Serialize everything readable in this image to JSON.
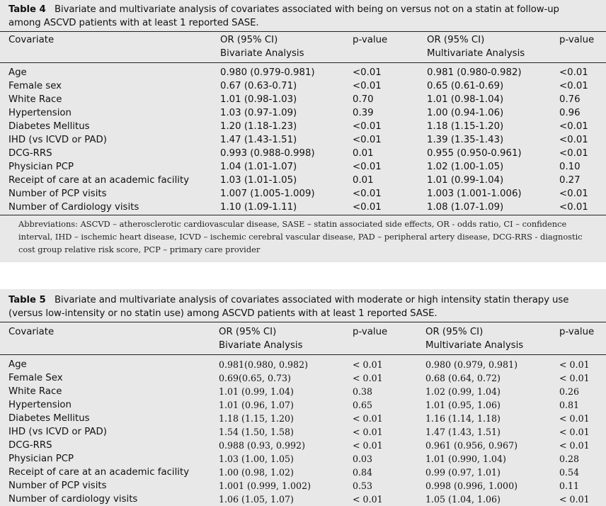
{
  "table4": {
    "label": "Table 4",
    "title": "Bivariate and multivariate analysis of covariates associated with being on versus not on a statin at follow-up among ASCVD patients with at least 1 reported SASE.",
    "headers": {
      "covariate": "Covariate",
      "or_biv_1": "OR (95% CI)",
      "or_biv_2": "Bivariate Analysis",
      "p_biv": "p-value",
      "or_mult_1": "OR (95% CI)",
      "or_mult_2": "Multivariate Analysis",
      "p_mult": "p-value"
    },
    "rows": [
      {
        "covariate": "Age",
        "or_biv": "0.980 (0.979-0.981)",
        "p_biv": "<0.01",
        "or_mult": "0.981 (0.980-0.982)",
        "p_mult": "<0.01"
      },
      {
        "covariate": "Female sex",
        "or_biv": "0.67 (0.63-0.71)",
        "p_biv": "<0.01",
        "or_mult": "0.65 (0.61-0.69)",
        "p_mult": "<0.01"
      },
      {
        "covariate": "White Race",
        "or_biv": "1.01 (0.98-1.03)",
        "p_biv": "0.70",
        "or_mult": "1.01 (0.98-1.04)",
        "p_mult": "0.76"
      },
      {
        "covariate": "Hypertension",
        "or_biv": "1.03 (0.97-1.09)",
        "p_biv": "0.39",
        "or_mult": "1.00 (0.94-1.06)",
        "p_mult": "0.96"
      },
      {
        "covariate": "Diabetes Mellitus",
        "or_biv": "1.20 (1.18-1.23)",
        "p_biv": "<0.01",
        "or_mult": "1.18 (1.15-1.20)",
        "p_mult": "<0.01"
      },
      {
        "covariate": "IHD (vs ICVD or PAD)",
        "or_biv": "1.47 (1.43-1.51)",
        "p_biv": "<0.01",
        "or_mult": "1.39 (1.35-1.43)",
        "p_mult": "<0.01"
      },
      {
        "covariate": "DCG-RRS",
        "or_biv": "0.993 (0.988-0.998)",
        "p_biv": "0.01",
        "or_mult": "0.955 (0.950-0.961)",
        "p_mult": "<0.01"
      },
      {
        "covariate": "Physician PCP",
        "or_biv": "1.04 (1.01-1.07)",
        "p_biv": "<0.01",
        "or_mult": "1.02 (1.00-1.05)",
        "p_mult": "0.10"
      },
      {
        "covariate": "Receipt of care at an academic facility",
        "or_biv": "1.03 (1.01-1.05)",
        "p_biv": "0.01",
        "or_mult": "1.01 (0.99-1.04)",
        "p_mult": "0.27"
      },
      {
        "covariate": "Number of PCP visits",
        "or_biv": "1.007 (1.005-1.009)",
        "p_biv": "<0.01",
        "or_mult": "1.003 (1.001-1.006)",
        "p_mult": "<0.01"
      },
      {
        "covariate": "Number of Cardiology visits",
        "or_biv": "1.10 (1.09-1.11)",
        "p_biv": "<0.01",
        "or_mult": "1.08 (1.07-1.09)",
        "p_mult": "<0.01"
      }
    ],
    "footnote": "Abbreviations: ASCVD – atherosclerotic cardiovascular disease, SASE – statin associated side effects, OR - odds ratio, CI – confidence interval, IHD – ischemic heart disease, ICVD – ischemic cerebral vascular disease, PAD – peripheral artery disease, DCG-RRS - diagnostic cost group relative risk score, PCP – primary care provider"
  },
  "table5": {
    "label": "Table 5",
    "title": "Bivariate and multivariate analysis of covariates associated with moderate or high intensity statin therapy use (versus low-intensity or no statin use) among ASCVD patients with at least 1 reported SASE.",
    "headers": {
      "covariate": "Covariate",
      "or_biv_1": "OR (95% CI)",
      "or_biv_2": "Bivariate Analysis",
      "p_biv": "p-value",
      "or_mult_1": "OR (95% CI)",
      "or_mult_2": "Multivariate Analysis",
      "p_mult": "p-value"
    },
    "rows": [
      {
        "covariate": "Age",
        "or_biv": "0.981(0.980, 0.982)",
        "p_biv": "< 0.01",
        "or_mult": "0.980 (0.979, 0.981)",
        "p_mult": "< 0.01"
      },
      {
        "covariate": "Female Sex",
        "or_biv": "0.69(0.65, 0.73)",
        "p_biv": "< 0.01",
        "or_mult": "0.68 (0.64, 0.72)",
        "p_mult": "< 0.01"
      },
      {
        "covariate": "White Race",
        "or_biv": "1.01 (0.99, 1.04)",
        "p_biv": "0.38",
        "or_mult": "1.02 (0.99, 1.04)",
        "p_mult": "0.26"
      },
      {
        "covariate": "Hypertension",
        "or_biv": "1.01 (0.96, 1.07)",
        "p_biv": "0.65",
        "or_mult": "1.01 (0.95, 1.06)",
        "p_mult": "0.81"
      },
      {
        "covariate": "Diabetes Mellitus",
        "or_biv": "1.18 (1.15, 1.20)",
        "p_biv": "< 0.01",
        "or_mult": "1.16 (1.14, 1.18)",
        "p_mult": "< 0.01"
      },
      {
        "covariate": "IHD (vs ICVD or PAD)",
        "or_biv": "1.54 (1.50, 1.58)",
        "p_biv": "< 0.01",
        "or_mult": "1.47 (1.43, 1.51)",
        "p_mult": "< 0.01"
      },
      {
        "covariate": "DCG-RRS",
        "or_biv": "0.988 (0.93, 0.992)",
        "p_biv": "< 0.01",
        "or_mult": "0.961 (0.956, 0.967)",
        "p_mult": "< 0.01"
      },
      {
        "covariate": "Physician PCP",
        "or_biv": "1.03 (1.00, 1.05)",
        "p_biv": "0.03",
        "or_mult": "1.01 (0.990, 1.04)",
        "p_mult": "0.28"
      },
      {
        "covariate": "Receipt of care at an academic facility",
        "or_biv": "1.00 (0.98, 1.02)",
        "p_biv": "0.84",
        "or_mult": "0.99 (0.97, 1.01)",
        "p_mult": "0.54"
      },
      {
        "covariate": "Number of PCP visits",
        "or_biv": "1.001 (0.999, 1.002)",
        "p_biv": "0.53",
        "or_mult": "0.998 (0.996, 1.000)",
        "p_mult": "0.11"
      },
      {
        "covariate": "Number of cardiology visits",
        "or_biv": "1.06 (1.05, 1.07)",
        "p_biv": "< 0.01",
        "or_mult": "1.05 (1.04, 1.06)",
        "p_mult": "< 0.01"
      }
    ]
  }
}
